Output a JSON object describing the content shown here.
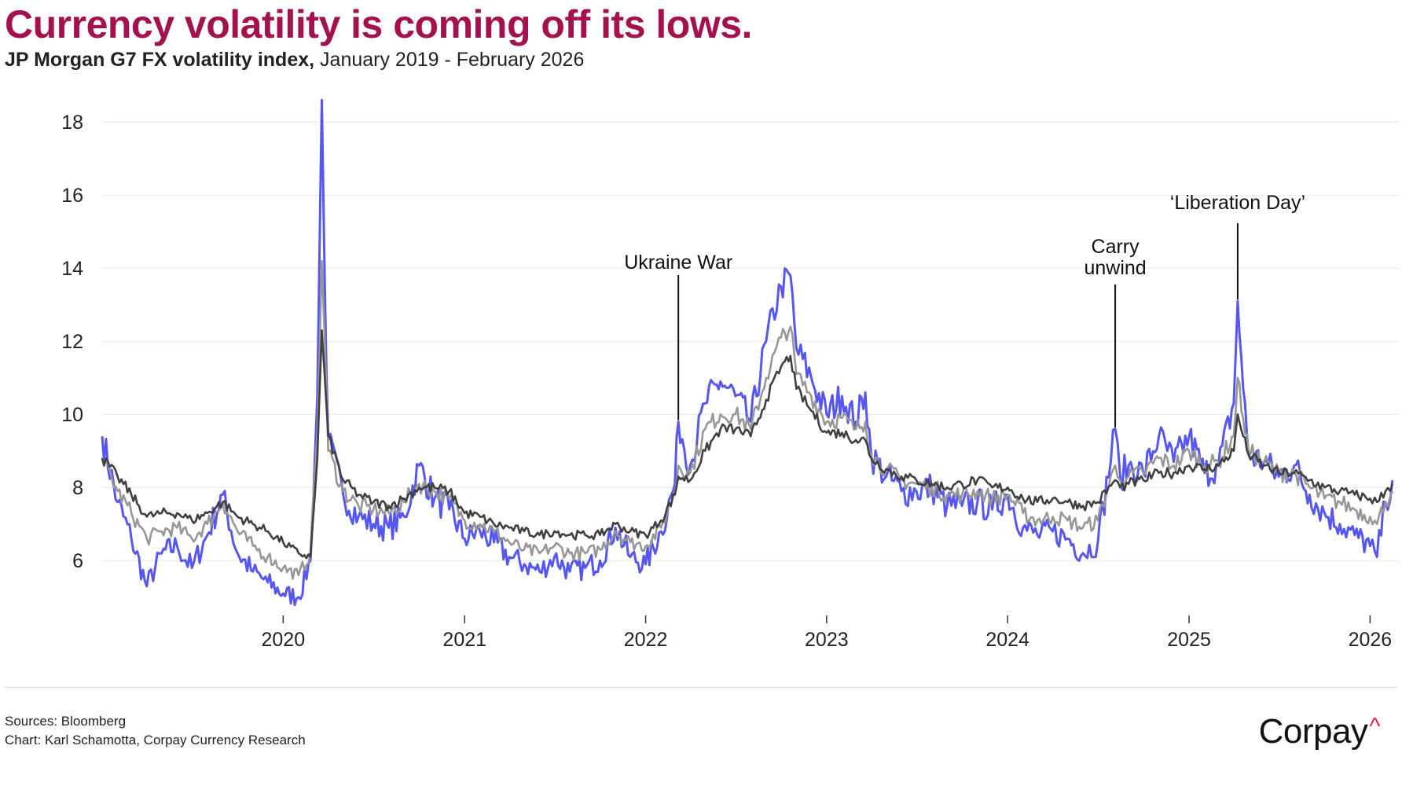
{
  "title": "Currency volatility is coming off its lows.",
  "subtitle": {
    "bold": "JP Morgan G7 FX volatility index,",
    "rest": " January 2019 - February 2026"
  },
  "footer": {
    "sources": "Sources: Bloomberg",
    "credit": "Chart: Karl Schamotta, Corpay Currency Research"
  },
  "brand": {
    "name": "Corpay",
    "mark": "^"
  },
  "colors": {
    "title": "#a3124f",
    "blue": "#5656f0",
    "gray": "#979797",
    "dark": "#404040",
    "grid": "#e6e6e6",
    "brand_accent": "#e2264d"
  },
  "chart_data": {
    "type": "line",
    "title": "",
    "xlabel": "",
    "ylabel": "",
    "ylim": [
      4.5,
      18.8
    ],
    "xlim": [
      "2019-01-01",
      "2026-02-28"
    ],
    "grid": "horizontal",
    "y_ticks": [
      "6",
      "8",
      "10",
      "12",
      "14",
      "16",
      "18"
    ],
    "x_ticks": [
      "2020",
      "2021",
      "2022",
      "2023",
      "2024",
      "2025",
      "2026"
    ],
    "series": [
      {
        "color": "#5656f0",
        "x": [
          "2019-01-01",
          "2019-02-01",
          "2019-03-01",
          "2019-04-01",
          "2019-05-01",
          "2019-06-01",
          "2019-07-01",
          "2019-08-01",
          "2019-09-01",
          "2019-10-01",
          "2019-11-01",
          "2019-12-01",
          "2020-01-01",
          "2020-02-01",
          "2020-02-25",
          "2020-03-10",
          "2020-03-19",
          "2020-03-25",
          "2020-04-01",
          "2020-05-01",
          "2020-06-01",
          "2020-07-01",
          "2020-08-01",
          "2020-09-01",
          "2020-10-01",
          "2020-11-01",
          "2020-12-01",
          "2021-01-01",
          "2021-02-01",
          "2021-03-01",
          "2021-04-01",
          "2021-05-01",
          "2021-06-01",
          "2021-07-01",
          "2021-08-01",
          "2021-09-01",
          "2021-10-01",
          "2021-11-01",
          "2021-12-01",
          "2022-01-01",
          "2022-02-01",
          "2022-03-01",
          "2022-03-08",
          "2022-04-01",
          "2022-05-01",
          "2022-06-01",
          "2022-07-01",
          "2022-08-01",
          "2022-09-01",
          "2022-10-01",
          "2022-10-20",
          "2022-11-01",
          "2022-12-01",
          "2023-01-01",
          "2023-02-01",
          "2023-03-01",
          "2023-03-20",
          "2023-04-01",
          "2023-05-01",
          "2023-06-01",
          "2023-07-01",
          "2023-08-01",
          "2023-09-01",
          "2023-10-01",
          "2023-11-01",
          "2023-12-01",
          "2024-01-01",
          "2024-02-01",
          "2024-03-01",
          "2024-04-01",
          "2024-05-01",
          "2024-06-01",
          "2024-07-01",
          "2024-08-05",
          "2024-08-15",
          "2024-09-01",
          "2024-10-01",
          "2024-11-01",
          "2024-12-01",
          "2025-01-01",
          "2025-02-01",
          "2025-03-01",
          "2025-04-01",
          "2025-04-09",
          "2025-04-20",
          "2025-05-01",
          "2025-06-01",
          "2025-07-01",
          "2025-08-01",
          "2025-09-01",
          "2025-10-01",
          "2025-11-01",
          "2025-12-01",
          "2026-01-01",
          "2026-01-15",
          "2026-02-01",
          "2026-02-15"
        ],
        "y": [
          9.4,
          7.6,
          6.6,
          5.3,
          6.2,
          6.4,
          5.8,
          6.7,
          7.8,
          6.2,
          5.7,
          5.4,
          5.1,
          5.0,
          6.0,
          10.5,
          18.6,
          13.5,
          9.3,
          7.8,
          7.2,
          7.0,
          6.9,
          7.2,
          8.6,
          7.7,
          7.4,
          6.6,
          6.8,
          6.5,
          6.1,
          5.9,
          5.7,
          6.1,
          5.7,
          5.8,
          6.0,
          6.9,
          6.1,
          5.9,
          6.8,
          8.1,
          9.8,
          8.6,
          10.3,
          10.9,
          10.5,
          9.8,
          12.0,
          13.5,
          13.8,
          11.8,
          11.0,
          10.0,
          10.5,
          9.8,
          10.6,
          8.9,
          8.3,
          7.9,
          7.9,
          8.0,
          7.5,
          7.5,
          7.6,
          7.4,
          7.8,
          6.9,
          6.7,
          6.8,
          6.6,
          6.2,
          6.5,
          9.6,
          8.3,
          8.6,
          8.4,
          9.4,
          8.7,
          9.4,
          8.4,
          8.6,
          10.3,
          13.1,
          10.7,
          8.9,
          8.7,
          8.3,
          8.6,
          7.8,
          7.3,
          7.0,
          6.7,
          6.4,
          6.1,
          7.6,
          8.2
        ]
      },
      {
        "color": "#979797",
        "x": [
          "2019-01-01",
          "2019-02-01",
          "2019-03-01",
          "2019-04-01",
          "2019-05-01",
          "2019-06-01",
          "2019-07-01",
          "2019-08-01",
          "2019-09-01",
          "2019-10-01",
          "2019-11-01",
          "2019-12-01",
          "2020-01-01",
          "2020-02-01",
          "2020-02-25",
          "2020-03-10",
          "2020-03-19",
          "2020-03-25",
          "2020-04-01",
          "2020-05-01",
          "2020-06-01",
          "2020-07-01",
          "2020-08-01",
          "2020-09-01",
          "2020-10-01",
          "2020-11-01",
          "2020-12-01",
          "2021-01-01",
          "2021-02-01",
          "2021-03-01",
          "2021-04-01",
          "2021-05-01",
          "2021-06-01",
          "2021-07-01",
          "2021-08-01",
          "2021-09-01",
          "2021-10-01",
          "2021-11-01",
          "2021-12-01",
          "2022-01-01",
          "2022-02-01",
          "2022-03-01",
          "2022-03-08",
          "2022-04-01",
          "2022-05-01",
          "2022-06-01",
          "2022-07-01",
          "2022-08-01",
          "2022-09-01",
          "2022-10-01",
          "2022-10-20",
          "2022-11-01",
          "2022-12-01",
          "2023-01-01",
          "2023-02-01",
          "2023-03-01",
          "2023-03-20",
          "2023-04-01",
          "2023-05-01",
          "2023-06-01",
          "2023-07-01",
          "2023-08-01",
          "2023-09-01",
          "2023-10-01",
          "2023-11-01",
          "2023-12-01",
          "2024-01-01",
          "2024-02-01",
          "2024-03-01",
          "2024-04-01",
          "2024-05-01",
          "2024-06-01",
          "2024-07-01",
          "2024-08-05",
          "2024-08-15",
          "2024-09-01",
          "2024-10-01",
          "2024-11-01",
          "2024-12-01",
          "2025-01-01",
          "2025-02-01",
          "2025-03-01",
          "2025-04-01",
          "2025-04-09",
          "2025-04-20",
          "2025-05-01",
          "2025-06-01",
          "2025-07-01",
          "2025-08-01",
          "2025-09-01",
          "2025-10-01",
          "2025-11-01",
          "2025-12-01",
          "2026-01-01",
          "2026-01-15",
          "2026-02-01",
          "2026-02-15"
        ],
        "y": [
          8.8,
          7.9,
          7.3,
          6.6,
          6.8,
          6.9,
          6.6,
          7.0,
          7.6,
          6.8,
          6.4,
          6.1,
          5.8,
          5.6,
          6.2,
          9.5,
          14.2,
          12.0,
          9.0,
          7.9,
          7.5,
          7.4,
          7.3,
          7.6,
          8.1,
          7.9,
          7.7,
          7.1,
          7.0,
          6.8,
          6.5,
          6.3,
          6.2,
          6.4,
          6.2,
          6.2,
          6.3,
          6.8,
          6.5,
          6.4,
          6.9,
          7.9,
          8.6,
          8.4,
          9.6,
          10.0,
          10.0,
          9.6,
          11.0,
          12.1,
          12.4,
          11.1,
          10.5,
          9.8,
          9.9,
          9.6,
          9.8,
          8.9,
          8.5,
          8.2,
          8.1,
          8.0,
          7.8,
          7.8,
          7.9,
          7.7,
          7.8,
          7.3,
          7.1,
          7.2,
          7.1,
          6.9,
          7.1,
          8.6,
          8.2,
          8.3,
          8.4,
          8.8,
          8.6,
          9.0,
          8.6,
          8.7,
          9.4,
          11.0,
          9.9,
          9.0,
          8.7,
          8.4,
          8.4,
          8.0,
          7.7,
          7.6,
          7.4,
          7.2,
          7.0,
          7.6,
          7.9
        ]
      },
      {
        "color": "#404040",
        "x": [
          "2019-01-01",
          "2019-02-01",
          "2019-03-01",
          "2019-04-01",
          "2019-05-01",
          "2019-06-01",
          "2019-07-01",
          "2019-08-01",
          "2019-09-01",
          "2019-10-01",
          "2019-11-01",
          "2019-12-01",
          "2020-01-01",
          "2020-02-01",
          "2020-02-25",
          "2020-03-10",
          "2020-03-19",
          "2020-03-25",
          "2020-04-01",
          "2020-05-01",
          "2020-06-01",
          "2020-07-01",
          "2020-08-01",
          "2020-09-01",
          "2020-10-01",
          "2020-11-01",
          "2020-12-01",
          "2021-01-01",
          "2021-02-01",
          "2021-03-01",
          "2021-04-01",
          "2021-05-01",
          "2021-06-01",
          "2021-07-01",
          "2021-08-01",
          "2021-09-01",
          "2021-10-01",
          "2021-11-01",
          "2021-12-01",
          "2022-01-01",
          "2022-02-01",
          "2022-03-01",
          "2022-03-08",
          "2022-04-01",
          "2022-05-01",
          "2022-06-01",
          "2022-07-01",
          "2022-08-01",
          "2022-09-01",
          "2022-10-01",
          "2022-10-20",
          "2022-11-01",
          "2022-12-01",
          "2023-01-01",
          "2023-02-01",
          "2023-03-01",
          "2023-03-20",
          "2023-04-01",
          "2023-05-01",
          "2023-06-01",
          "2023-07-01",
          "2023-08-01",
          "2023-09-01",
          "2023-10-01",
          "2023-11-01",
          "2023-12-01",
          "2024-01-01",
          "2024-02-01",
          "2024-03-01",
          "2024-04-01",
          "2024-05-01",
          "2024-06-01",
          "2024-07-01",
          "2024-08-05",
          "2024-08-15",
          "2024-09-01",
          "2024-10-01",
          "2024-11-01",
          "2024-12-01",
          "2025-01-01",
          "2025-02-01",
          "2025-03-01",
          "2025-04-01",
          "2025-04-09",
          "2025-04-20",
          "2025-05-01",
          "2025-06-01",
          "2025-07-01",
          "2025-08-01",
          "2025-09-01",
          "2025-10-01",
          "2025-11-01",
          "2025-12-01",
          "2026-01-01",
          "2026-01-15",
          "2026-02-01",
          "2026-02-15"
        ],
        "y": [
          8.8,
          8.3,
          7.8,
          7.2,
          7.3,
          7.3,
          7.1,
          7.3,
          7.6,
          7.2,
          7.0,
          6.8,
          6.5,
          6.2,
          6.1,
          8.8,
          12.3,
          11.0,
          9.4,
          8.2,
          7.8,
          7.6,
          7.5,
          7.7,
          8.0,
          8.0,
          7.9,
          7.3,
          7.2,
          7.0,
          6.9,
          6.8,
          6.7,
          6.8,
          6.7,
          6.7,
          6.7,
          7.0,
          6.8,
          6.7,
          7.1,
          7.8,
          8.3,
          8.2,
          9.0,
          9.6,
          9.6,
          9.4,
          10.4,
          11.3,
          11.6,
          10.7,
          10.1,
          9.5,
          9.5,
          9.3,
          9.3,
          8.8,
          8.5,
          8.3,
          8.2,
          8.1,
          8.0,
          8.1,
          8.2,
          8.0,
          8.0,
          7.7,
          7.6,
          7.7,
          7.6,
          7.5,
          7.6,
          8.2,
          8.0,
          8.1,
          8.2,
          8.4,
          8.4,
          8.6,
          8.5,
          8.6,
          9.0,
          10.0,
          9.4,
          8.9,
          8.6,
          8.4,
          8.4,
          8.2,
          8.0,
          7.9,
          7.8,
          7.7,
          7.6,
          7.9,
          8.1
        ]
      }
    ],
    "annotations": [
      {
        "text": "Ukraine War",
        "date": "2022-03-08",
        "value": 9.8
      },
      {
        "text": "Carry\nunwind",
        "date": "2024-08-05",
        "value": 9.6
      },
      {
        "text": "‘Liberation Day’",
        "date": "2025-04-09",
        "value": 13.1
      }
    ]
  }
}
